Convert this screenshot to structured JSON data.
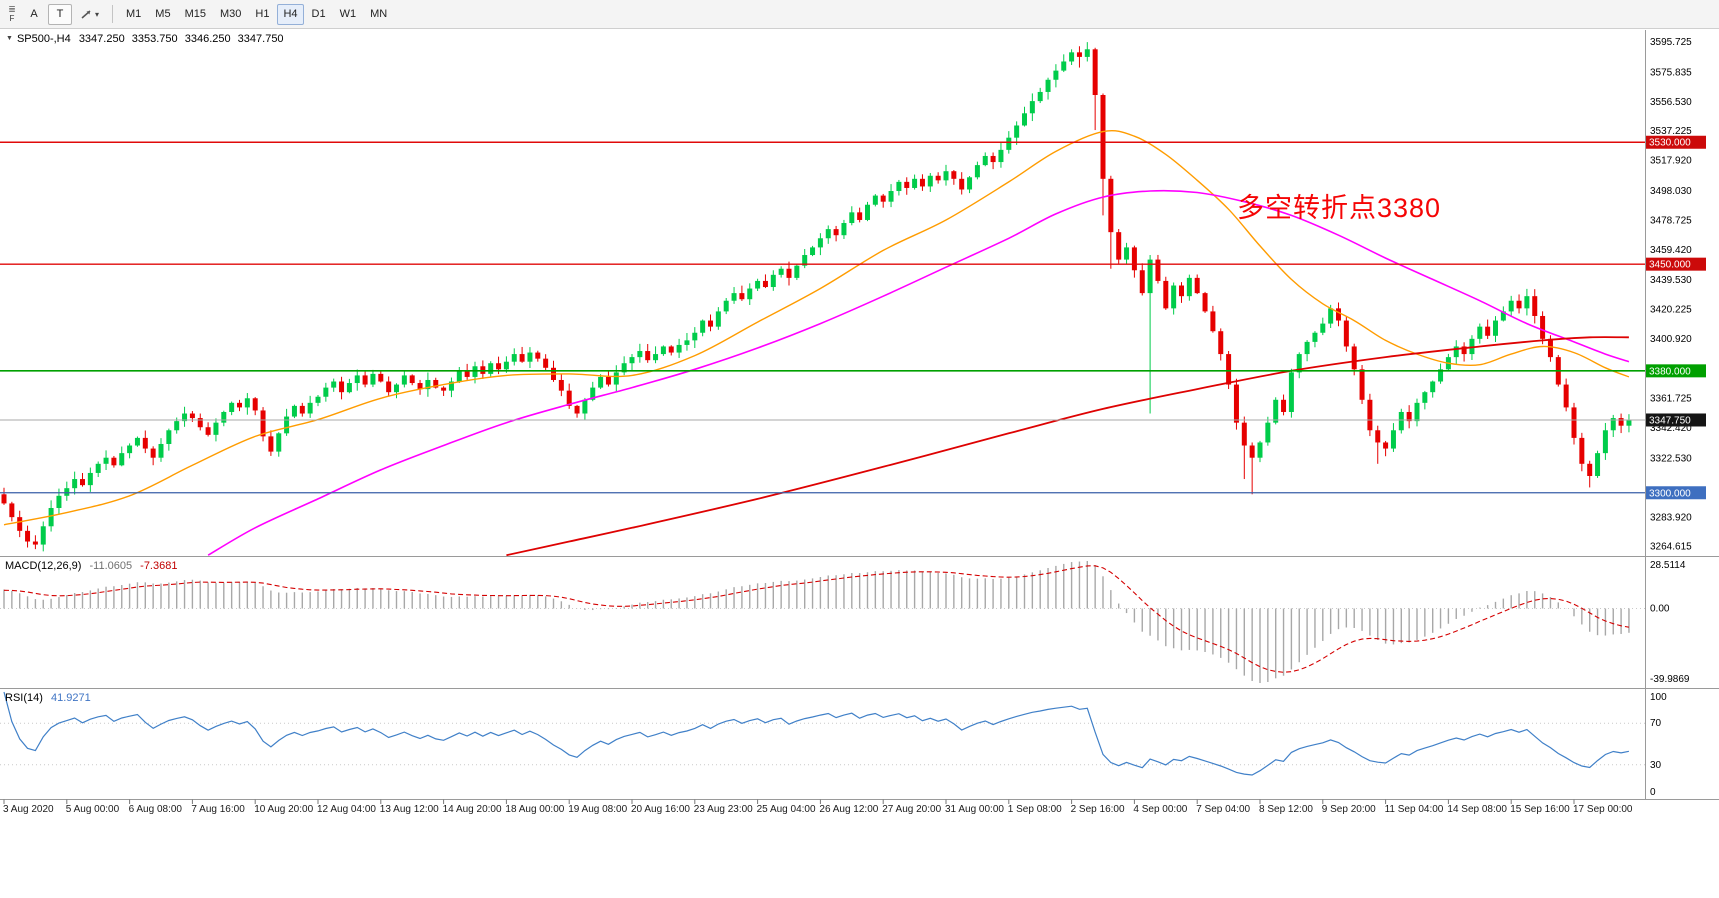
{
  "toolbar": {
    "customize_icon": "≣",
    "customize_sub": "F",
    "tool_a": "A",
    "tool_t": "T",
    "shapes_caret": "▾",
    "timeframes": [
      "M1",
      "M5",
      "M15",
      "M30",
      "H1",
      "H4",
      "D1",
      "W1",
      "MN"
    ],
    "selected_timeframe": "H4"
  },
  "header": {
    "collapse_icon": "▼",
    "symbol": "SP500-,H4",
    "open": "3347.250",
    "high": "3353.750",
    "low": "3346.250",
    "close": "3347.750"
  },
  "annotation": {
    "text": "多空转折点3380"
  },
  "macd_header": {
    "name": "MACD(12,26,9)",
    "main_value": "-11.0605",
    "signal_value": "-7.3681"
  },
  "rsi_header": {
    "name": "RSI(14)",
    "value": "41.9271"
  },
  "axes": {
    "price_ticks": [
      "3595.725",
      "3575.835",
      "3556.530",
      "3537.225",
      "3517.920",
      "3498.030",
      "3478.725",
      "3459.420",
      "3439.530",
      "3420.225",
      "3400.920",
      "3361.725",
      "3342.420",
      "3322.530",
      "3283.920",
      "3264.615"
    ],
    "macd_ticks": {
      "top": "28.5114",
      "zero": "0.00",
      "bottom": "-39.9869"
    },
    "rsi_ticks": [
      "100",
      "70",
      "30",
      "0"
    ],
    "time_labels": [
      "3 Aug 2020",
      "5 Aug 00:00",
      "6 Aug 08:00",
      "7 Aug 16:00",
      "10 Aug 20:00",
      "12 Aug 04:00",
      "13 Aug 12:00",
      "14 Aug 20:00",
      "18 Aug 00:00",
      "19 Aug 08:00",
      "20 Aug 16:00",
      "23 Aug 23:00",
      "25 Aug 04:00",
      "26 Aug 12:00",
      "27 Aug 20:00",
      "31 Aug 00:00",
      "1 Sep 08:00",
      "2 Sep 16:00",
      "4 Sep 00:00",
      "7 Sep 04:00",
      "8 Sep 12:00",
      "9 Sep 20:00",
      "11 Sep 04:00",
      "14 Sep 08:00",
      "15 Sep 16:00",
      "17 Sep 00:00"
    ]
  },
  "chart_data": {
    "type": "candlestick",
    "symbol": "SP500-",
    "timeframe": "H4",
    "price_range_visible": [
      3258.5,
      3603
    ],
    "bars": 208,
    "closes": [
      3293,
      3284,
      3275,
      3268,
      3266,
      3278,
      3290,
      3298,
      3303,
      3309,
      3305,
      3313,
      3319,
      3323,
      3318,
      3326,
      3331,
      3336,
      3329,
      3323,
      3332,
      3341,
      3347,
      3352,
      3349,
      3343,
      3338,
      3346,
      3353,
      3359,
      3356,
      3362,
      3354,
      3337,
      3327,
      3339,
      3350,
      3357,
      3352,
      3359,
      3363,
      3369,
      3373,
      3366,
      3372,
      3377,
      3371,
      3378,
      3373,
      3366,
      3371,
      3377,
      3372,
      3368,
      3374,
      3369,
      3367,
      3373,
      3380,
      3376,
      3383,
      3378,
      3385,
      3381,
      3386,
      3391,
      3386,
      3392,
      3388,
      3382,
      3374,
      3367,
      3357,
      3352,
      3361,
      3369,
      3376,
      3371,
      3379,
      3385,
      3389,
      3393,
      3387,
      3391,
      3396,
      3392,
      3397,
      3400,
      3405,
      3413,
      3409,
      3419,
      3426,
      3431,
      3427,
      3434,
      3439,
      3435,
      3443,
      3447,
      3441,
      3449,
      3456,
      3461,
      3467,
      3473,
      3469,
      3477,
      3484,
      3479,
      3489,
      3495,
      3491,
      3498,
      3504,
      3500,
      3506,
      3501,
      3508,
      3505,
      3511,
      3506,
      3499,
      3507,
      3515,
      3521,
      3517,
      3525,
      3533,
      3541,
      3549,
      3557,
      3563,
      3571,
      3577,
      3583,
      3589,
      3586,
      3591,
      3561,
      3506,
      3471,
      3453,
      3461,
      3446,
      3431,
      3453,
      3439,
      3421,
      3436,
      3429,
      3441,
      3431,
      3419,
      3406,
      3391,
      3371,
      3346,
      3331,
      3323,
      3333,
      3346,
      3361,
      3353,
      3379,
      3391,
      3399,
      3405,
      3411,
      3421,
      3413,
      3396,
      3381,
      3361,
      3341,
      3333,
      3329,
      3341,
      3353,
      3347,
      3359,
      3366,
      3373,
      3381,
      3389,
      3396,
      3391,
      3401,
      3409,
      3403,
      3413,
      3419,
      3426,
      3421,
      3429,
      3416,
      3401,
      3389,
      3371,
      3356,
      3336,
      3319,
      3311,
      3326,
      3341,
      3349,
      3344,
      3347.75
    ],
    "wick_overrides": {
      "137": [
        3593,
        3579
      ],
      "138": [
        3595.7,
        3583
      ],
      "139": [
        3592,
        3538
      ],
      "140": [
        3562,
        3482
      ],
      "141": [
        3508,
        3447
      ],
      "146": [
        3456,
        3352
      ],
      "158": [
        3350,
        3309
      ],
      "159": [
        3333,
        3299
      ],
      "175": [
        3344,
        3319
      ],
      "202": [
        3321,
        3303.5
      ]
    },
    "hlines": [
      {
        "price": 3530,
        "label": "3530.000",
        "line_color": "#e00a0a",
        "badge_color": "#cc0a0a",
        "width": 1.4
      },
      {
        "price": 3450,
        "label": "3450.000",
        "line_color": "#e00a0a",
        "badge_color": "#cc0a0a",
        "width": 1.4
      },
      {
        "price": 3380,
        "label": "3380.000",
        "line_color": "#00a000",
        "badge_color": "#00a000",
        "width": 1.6
      },
      {
        "price": 3300,
        "label": "3300.000",
        "line_color": "#3a5fa8",
        "badge_color": "#3e6fc0",
        "width": 1.2
      }
    ],
    "bid": {
      "price": 3347.75,
      "label": "3347.750",
      "line_color": "#a8a8a8",
      "badge_color": "#151515"
    },
    "ma_lines": [
      {
        "name": "fast-ma",
        "color": "#ff9c00",
        "width": 1.4,
        "points": [
          [
            0,
            3279
          ],
          [
            8,
            3287
          ],
          [
            16,
            3298
          ],
          [
            24,
            3318
          ],
          [
            32,
            3337
          ],
          [
            40,
            3348
          ],
          [
            48,
            3362
          ],
          [
            56,
            3371
          ],
          [
            64,
            3377
          ],
          [
            72,
            3378
          ],
          [
            80,
            3377
          ],
          [
            88,
            3390
          ],
          [
            96,
            3412
          ],
          [
            104,
            3434
          ],
          [
            112,
            3459
          ],
          [
            120,
            3479
          ],
          [
            128,
            3504
          ],
          [
            134,
            3524
          ],
          [
            140,
            3537
          ],
          [
            144,
            3534
          ],
          [
            148,
            3522
          ],
          [
            152,
            3505
          ],
          [
            156,
            3486
          ],
          [
            160,
            3462
          ],
          [
            164,
            3440
          ],
          [
            168,
            3424
          ],
          [
            172,
            3413
          ],
          [
            176,
            3400
          ],
          [
            180,
            3391
          ],
          [
            184,
            3385
          ],
          [
            188,
            3384
          ],
          [
            192,
            3391
          ],
          [
            196,
            3396
          ],
          [
            200,
            3392
          ],
          [
            204,
            3382
          ],
          [
            207,
            3376
          ]
        ]
      },
      {
        "name": "mid-ma",
        "color": "#ff00ff",
        "width": 1.6,
        "points": [
          [
            26,
            3259
          ],
          [
            32,
            3277
          ],
          [
            40,
            3296
          ],
          [
            48,
            3315
          ],
          [
            56,
            3331
          ],
          [
            64,
            3346
          ],
          [
            72,
            3358
          ],
          [
            80,
            3369
          ],
          [
            88,
            3381
          ],
          [
            96,
            3395
          ],
          [
            104,
            3411
          ],
          [
            112,
            3429
          ],
          [
            120,
            3448
          ],
          [
            128,
            3467
          ],
          [
            134,
            3483
          ],
          [
            140,
            3494
          ],
          [
            146,
            3498
          ],
          [
            152,
            3497
          ],
          [
            158,
            3491
          ],
          [
            164,
            3482
          ],
          [
            170,
            3469
          ],
          [
            176,
            3454
          ],
          [
            182,
            3440
          ],
          [
            188,
            3426
          ],
          [
            194,
            3411
          ],
          [
            200,
            3399
          ],
          [
            204,
            3391
          ],
          [
            207,
            3386
          ]
        ]
      },
      {
        "name": "slow-ma",
        "color": "#de0202",
        "width": 1.8,
        "points": [
          [
            64,
            3259
          ],
          [
            72,
            3268
          ],
          [
            80,
            3277
          ],
          [
            96,
            3296
          ],
          [
            112,
            3317
          ],
          [
            128,
            3339
          ],
          [
            140,
            3355
          ],
          [
            152,
            3368
          ],
          [
            164,
            3380
          ],
          [
            176,
            3389
          ],
          [
            188,
            3396
          ],
          [
            196,
            3400
          ],
          [
            202,
            3402
          ],
          [
            207,
            3402
          ]
        ]
      }
    ],
    "indicators": {
      "macd": {
        "fast": 12,
        "slow": 26,
        "signal": 9,
        "hist_color": "#a8a8a8",
        "signal_color": "#d40000"
      },
      "rsi": {
        "period": 14,
        "color": "#4080c8",
        "levels": [
          70,
          30
        ]
      }
    },
    "colors": {
      "bull": "#00cc4a",
      "bear": "#e60000",
      "bid_line": "#a8a8a8",
      "grid": "#c9c9c9",
      "separator": "#9a9a9a"
    }
  }
}
